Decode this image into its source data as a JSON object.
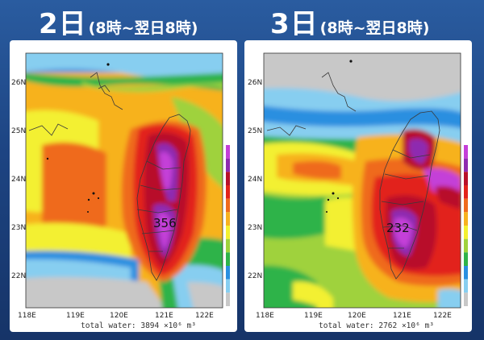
{
  "panels": [
    {
      "id": "left",
      "day": "2日",
      "range": "(8時~翌日8時)",
      "max_value": "356",
      "total_text": "total water: 3894 ×10⁶ m³",
      "lat_labels": [
        "26N",
        "25N",
        "24N",
        "23N",
        "22N"
      ],
      "lon_labels": [
        "118E",
        "119E",
        "120E",
        "121E",
        "122E"
      ]
    },
    {
      "id": "right",
      "day": "3日",
      "range": "(8時~翌日8時)",
      "max_value": "232",
      "total_text": "total water: 2762 ×10⁶ m³",
      "lat_labels": [
        "26N",
        "25N",
        "24N",
        "23N",
        "22N"
      ],
      "lon_labels": [
        "118E",
        "119E",
        "120E",
        "121E",
        "122E"
      ]
    }
  ],
  "colors": {
    "background": "#1d4482",
    "title_text": "#ffffff",
    "rain_scale": [
      "#c8c8c8",
      "#87cef0",
      "#2a8fe0",
      "#2fb34a",
      "#9fd23c",
      "#f3f030",
      "#f7b21f",
      "#ef6a1c",
      "#e2231b",
      "#b8102a",
      "#8e2bb0",
      "#c43fd8"
    ]
  }
}
